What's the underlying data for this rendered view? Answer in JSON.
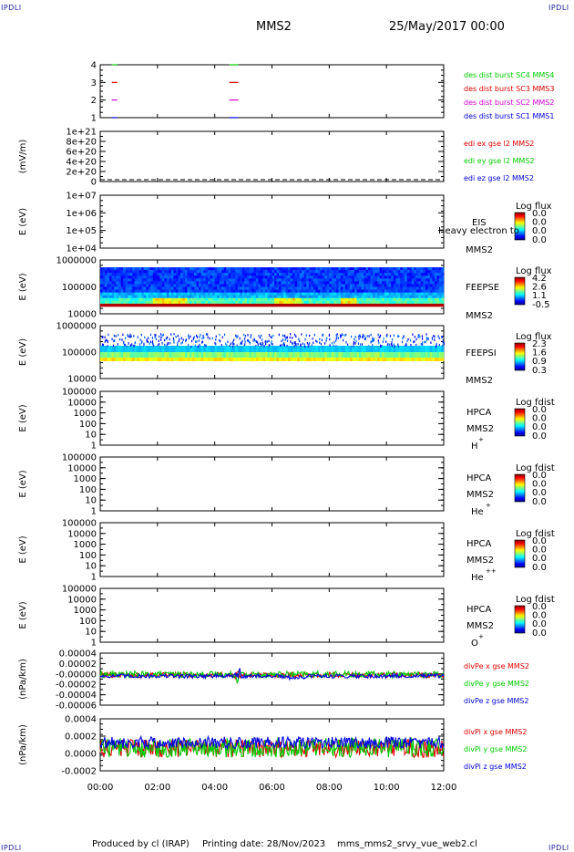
{
  "header": {
    "corner_tl": "IPDLI",
    "corner_tr": "IPDLI",
    "corner_bl": "IPDLI",
    "corner_br": "IPDLI",
    "spacecraft": "MMS2",
    "date": "25/May/2017 00:00"
  },
  "footer": {
    "produced_by": "Produced by cl (IRAP)",
    "printing_date": "Printing date: 28/Nov/2023",
    "script_name": "mms_mms2_srvy_vue_web2.cl"
  },
  "colors": {
    "red": "#e00000",
    "green": "#00cc00",
    "blue": "#0000dd",
    "magenta": "#d000d0"
  },
  "chart_data": [
    {
      "type": "scatter",
      "id": "p1",
      "ylabel": "",
      "yticks": [
        "1",
        "2",
        "3",
        "4"
      ],
      "series": [
        {
          "name": "des dist burst SC1 MMS1",
          "color": "#0000dd",
          "y": 1,
          "x": [
            "00:30",
            "04:40"
          ]
        },
        {
          "name": "des dist burst SC2 MMS2",
          "color": "#d000d0",
          "y": 2,
          "x": [
            "00:30",
            "04:40"
          ]
        },
        {
          "name": "des dist burst SC3 MMS3",
          "color": "#e00000",
          "y": 3,
          "x": [
            "00:30",
            "04:40"
          ]
        },
        {
          "name": "des dist burst SC4 MMS4",
          "color": "#00cc00",
          "y": 4,
          "x": [
            "00:30",
            "04:40"
          ]
        }
      ]
    },
    {
      "type": "line",
      "id": "p2",
      "ylabel": "(mV/m)",
      "yticks": [
        "0",
        "2e+20",
        "4e+20",
        "6e+20",
        "8e+20",
        "1e+21"
      ],
      "series": [
        {
          "name": "edi ex gse l2 MMS2",
          "color": "#e00000"
        },
        {
          "name": "edi ey gse l2 MMS2",
          "color": "#00cc00"
        },
        {
          "name": "edi ez gse l2 MMS2",
          "color": "#0000dd"
        }
      ]
    },
    {
      "type": "heatmap",
      "id": "p3",
      "ylabel": "E (eV)",
      "yticks": [
        "1e+04",
        "1e+05",
        "1e+06",
        "1e+07"
      ],
      "instrument": "EIS",
      "overlay_text": "Heavy electron to",
      "spacecraft": "MMS2",
      "colorbar": {
        "title": "Log flux",
        "ticks": [
          "0.0",
          "0.0",
          "0.0",
          "0.0"
        ]
      }
    },
    {
      "type": "heatmap",
      "id": "p4",
      "ylabel": "E (eV)",
      "yticks": [
        "10000",
        "100000",
        "1000000"
      ],
      "instrument": "FEEPSE",
      "spacecraft": "MMS2",
      "colorbar": {
        "title": "Log flux",
        "ticks": [
          "4.2",
          "2.6",
          "1.1",
          "-0.5"
        ]
      }
    },
    {
      "type": "heatmap",
      "id": "p5",
      "ylabel": "E (eV)",
      "yticks": [
        "10000",
        "100000",
        "1000000"
      ],
      "instrument": "FEEPSI",
      "spacecraft": "MMS2",
      "colorbar": {
        "title": "Log flux",
        "ticks": [
          "2.3",
          "1.6",
          "0.9",
          "0.3"
        ]
      }
    },
    {
      "type": "heatmap",
      "id": "p6",
      "ylabel": "E (eV)",
      "yticks": [
        "1",
        "10",
        "100",
        "1000",
        "10000",
        "100000"
      ],
      "instrument": "HPCA",
      "spacecraft": "MMS2",
      "species": "H",
      "charge": "+",
      "colorbar": {
        "title": "Log fdist",
        "ticks": [
          "0.0",
          "0.0",
          "0.0",
          "0.0"
        ]
      }
    },
    {
      "type": "heatmap",
      "id": "p7",
      "ylabel": "E (eV)",
      "yticks": [
        "1",
        "10",
        "100",
        "1000",
        "10000",
        "100000"
      ],
      "instrument": "HPCA",
      "spacecraft": "MMS2",
      "species": "He",
      "charge": "+",
      "colorbar": {
        "title": "Log fdist",
        "ticks": [
          "0.0",
          "0.0",
          "0.0",
          "0.0"
        ]
      }
    },
    {
      "type": "heatmap",
      "id": "p8",
      "ylabel": "E (eV)",
      "yticks": [
        "1",
        "10",
        "100",
        "1000",
        "10000",
        "100000"
      ],
      "instrument": "HPCA",
      "spacecraft": "MMS2",
      "species": "He",
      "charge": "++",
      "colorbar": {
        "title": "Log fdist",
        "ticks": [
          "0.0",
          "0.0",
          "0.0",
          "0.0"
        ]
      }
    },
    {
      "type": "heatmap",
      "id": "p9",
      "ylabel": "E (eV)",
      "yticks": [
        "1",
        "10",
        "100",
        "1000",
        "10000",
        "100000"
      ],
      "instrument": "HPCA",
      "spacecraft": "MMS2",
      "species": "O",
      "charge": "+",
      "colorbar": {
        "title": "Log fdist",
        "ticks": [
          "0.0",
          "0.0",
          "0.0",
          "0.0"
        ]
      }
    },
    {
      "type": "line",
      "id": "p10",
      "ylabel": "(nPa/km)",
      "yticks": [
        "-0.00006",
        "-0.00004",
        "-0.00002",
        "-0.00000",
        "0.00002",
        "0.00004"
      ],
      "ylim": [
        -6e-05,
        4e-05
      ],
      "series": [
        {
          "name": "divPe x gse MMS2",
          "color": "#e00000",
          "mean": -2e-06,
          "amplitude": 5e-06
        },
        {
          "name": "divPe y gse MMS2",
          "color": "#00cc00",
          "mean": -1e-06,
          "amplitude": 6e-06
        },
        {
          "name": "divPe z gse MMS2",
          "color": "#0000dd",
          "mean": -4e-06,
          "amplitude": 4e-06
        }
      ]
    },
    {
      "type": "line",
      "id": "p11",
      "ylabel": "(nPa/km)",
      "yticks": [
        "-0.0002",
        "0.0000",
        "0.0002",
        "0.0004"
      ],
      "ylim": [
        -0.0003,
        0.0004
      ],
      "series": [
        {
          "name": "divPi x gse MMS2",
          "color": "#e00000",
          "mean": 0.0,
          "amplitude": 0.00012
        },
        {
          "name": "divPi y gse MMS2",
          "color": "#00cc00",
          "mean": 1e-05,
          "amplitude": 0.00013
        },
        {
          "name": "divPi z gse MMS2",
          "color": "#0000dd",
          "mean": 8e-05,
          "amplitude": 8e-05
        }
      ]
    }
  ],
  "xaxis": {
    "ticks": [
      "00:00",
      "02:00",
      "04:00",
      "06:00",
      "08:00",
      "10:00",
      "12:00"
    ],
    "range_hours": [
      0,
      12
    ]
  }
}
